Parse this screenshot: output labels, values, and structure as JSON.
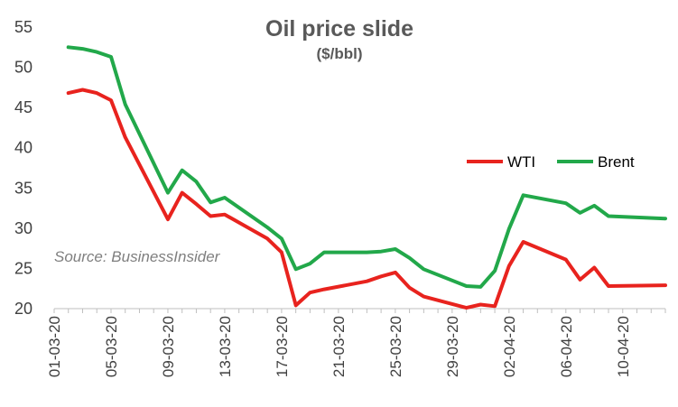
{
  "chart_data": {
    "type": "line",
    "title": "Oil price slide",
    "subtitle": "($/bbl)",
    "annotation": "Source: BusinessInsider",
    "xlabel": "",
    "ylabel": "",
    "ylim": [
      20,
      55
    ],
    "yticks": [
      20,
      25,
      30,
      35,
      40,
      45,
      50,
      55
    ],
    "xlim": [
      "01-03-20",
      "13-04-20"
    ],
    "xtick_labels": [
      "01-03-20",
      "05-03-20",
      "09-03-20",
      "13-03-20",
      "17-03-20",
      "21-03-20",
      "25-03-20",
      "29-03-20",
      "02-04-20",
      "06-04-20",
      "10-04-20"
    ],
    "grid": false,
    "legend_position": "right, mid-height",
    "series": [
      {
        "name": "WTI",
        "color": "#e8231e",
        "points": [
          {
            "x": "02-03-20",
            "y": 46.8
          },
          {
            "x": "03-03-20",
            "y": 47.2
          },
          {
            "x": "04-03-20",
            "y": 46.8
          },
          {
            "x": "05-03-20",
            "y": 45.9
          },
          {
            "x": "06-03-20",
            "y": 41.3
          },
          {
            "x": "09-03-20",
            "y": 31.1
          },
          {
            "x": "10-03-20",
            "y": 34.4
          },
          {
            "x": "11-03-20",
            "y": 33.0
          },
          {
            "x": "12-03-20",
            "y": 31.5
          },
          {
            "x": "13-03-20",
            "y": 31.7
          },
          {
            "x": "16-03-20",
            "y": 28.7
          },
          {
            "x": "17-03-20",
            "y": 27.0
          },
          {
            "x": "18-03-20",
            "y": 20.4
          },
          {
            "x": "19-03-20",
            "y": 22.0
          },
          {
            "x": "20-03-20",
            "y": 22.4
          },
          {
            "x": "23-03-20",
            "y": 23.4
          },
          {
            "x": "24-03-20",
            "y": 24.0
          },
          {
            "x": "25-03-20",
            "y": 24.5
          },
          {
            "x": "26-03-20",
            "y": 22.6
          },
          {
            "x": "27-03-20",
            "y": 21.5
          },
          {
            "x": "30-03-20",
            "y": 20.1
          },
          {
            "x": "31-03-20",
            "y": 20.5
          },
          {
            "x": "01-04-20",
            "y": 20.3
          },
          {
            "x": "02-04-20",
            "y": 25.3
          },
          {
            "x": "03-04-20",
            "y": 28.3
          },
          {
            "x": "06-04-20",
            "y": 26.1
          },
          {
            "x": "07-04-20",
            "y": 23.6
          },
          {
            "x": "08-04-20",
            "y": 25.1
          },
          {
            "x": "09-04-20",
            "y": 22.8
          },
          {
            "x": "13-04-20",
            "y": 22.9
          }
        ]
      },
      {
        "name": "Brent",
        "color": "#22a84a",
        "points": [
          {
            "x": "02-03-20",
            "y": 52.5
          },
          {
            "x": "03-03-20",
            "y": 52.3
          },
          {
            "x": "04-03-20",
            "y": 51.9
          },
          {
            "x": "05-03-20",
            "y": 51.3
          },
          {
            "x": "06-03-20",
            "y": 45.4
          },
          {
            "x": "09-03-20",
            "y": 34.4
          },
          {
            "x": "10-03-20",
            "y": 37.2
          },
          {
            "x": "11-03-20",
            "y": 35.8
          },
          {
            "x": "12-03-20",
            "y": 33.2
          },
          {
            "x": "13-03-20",
            "y": 33.8
          },
          {
            "x": "16-03-20",
            "y": 30.1
          },
          {
            "x": "17-03-20",
            "y": 28.7
          },
          {
            "x": "18-03-20",
            "y": 24.9
          },
          {
            "x": "19-03-20",
            "y": 25.6
          },
          {
            "x": "20-03-20",
            "y": 27.0
          },
          {
            "x": "23-03-20",
            "y": 27.0
          },
          {
            "x": "24-03-20",
            "y": 27.1
          },
          {
            "x": "25-03-20",
            "y": 27.4
          },
          {
            "x": "26-03-20",
            "y": 26.3
          },
          {
            "x": "27-03-20",
            "y": 24.9
          },
          {
            "x": "30-03-20",
            "y": 22.8
          },
          {
            "x": "31-03-20",
            "y": 22.7
          },
          {
            "x": "01-04-20",
            "y": 24.7
          },
          {
            "x": "02-04-20",
            "y": 29.9
          },
          {
            "x": "03-04-20",
            "y": 34.1
          },
          {
            "x": "06-04-20",
            "y": 33.1
          },
          {
            "x": "07-04-20",
            "y": 31.9
          },
          {
            "x": "08-04-20",
            "y": 32.8
          },
          {
            "x": "09-04-20",
            "y": 31.5
          },
          {
            "x": "13-04-20",
            "y": 31.2
          }
        ]
      }
    ]
  }
}
